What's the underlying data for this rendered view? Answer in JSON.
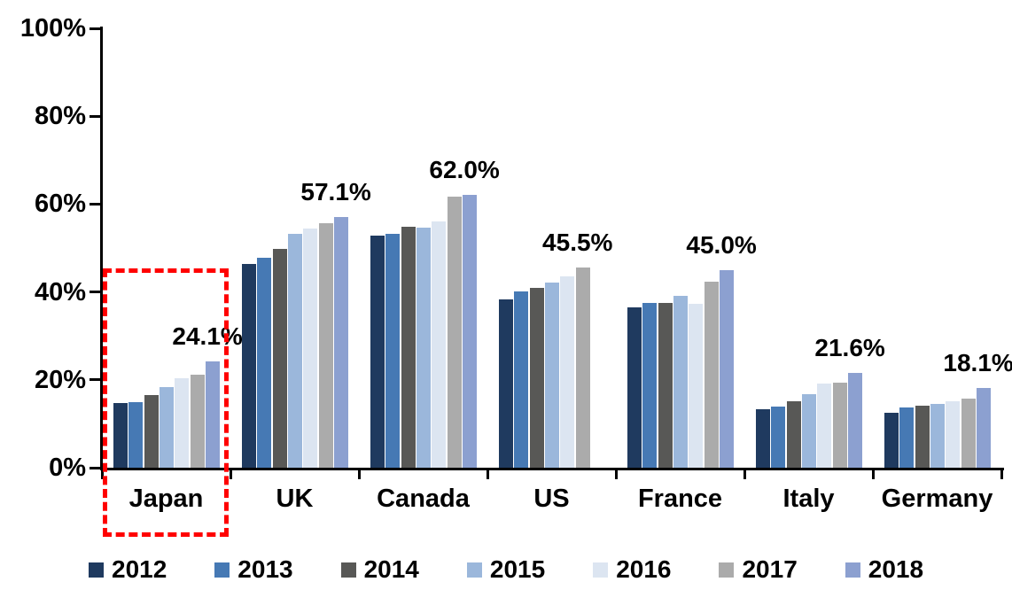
{
  "chart_data": {
    "type": "bar",
    "title": "",
    "categories": [
      "Japan",
      "UK",
      "Canada",
      "US",
      "France",
      "Italy",
      "Germany"
    ],
    "series": [
      {
        "name": "2012",
        "color": "#1F3A5F",
        "values": [
          14.8,
          46.3,
          52.9,
          38.3,
          36.5,
          13.3,
          12.5
        ]
      },
      {
        "name": "2013",
        "color": "#4679B4",
        "values": [
          15.0,
          47.8,
          53.3,
          40.2,
          37.5,
          14.0,
          13.8
        ]
      },
      {
        "name": "2014",
        "color": "#585856",
        "values": [
          16.6,
          49.8,
          54.8,
          41.0,
          37.6,
          15.2,
          14.2
        ]
      },
      {
        "name": "2015",
        "color": "#9BB7DB",
        "values": [
          18.4,
          53.2,
          54.6,
          42.1,
          39.2,
          16.8,
          14.5
        ]
      },
      {
        "name": "2016",
        "color": "#DCE5F1",
        "values": [
          20.4,
          54.4,
          56.1,
          43.5,
          37.3,
          19.2,
          15.2
        ]
      },
      {
        "name": "2017",
        "color": "#ABABAB",
        "values": [
          21.2,
          55.6,
          61.6,
          45.5,
          42.3,
          19.4,
          15.8
        ]
      },
      {
        "name": "2018",
        "color": "#8CA0D0",
        "values": [
          24.1,
          57.1,
          62.0,
          null,
          45.0,
          21.6,
          18.1
        ]
      }
    ],
    "data_labels": [
      "24.1%",
      "57.1%",
      "62.0%",
      "45.5%",
      "45.0%",
      "21.6%",
      "18.1%"
    ],
    "y_ticks": [
      "100%",
      "80%",
      "60%",
      "40%",
      "20%",
      "0%"
    ],
    "ylim": [
      0,
      100
    ],
    "y_step": 20,
    "grid": false,
    "legend_position": "bottom",
    "highlight": {
      "category": "Japan",
      "style": "red-dashed-box",
      "color": "#FF0000"
    }
  }
}
